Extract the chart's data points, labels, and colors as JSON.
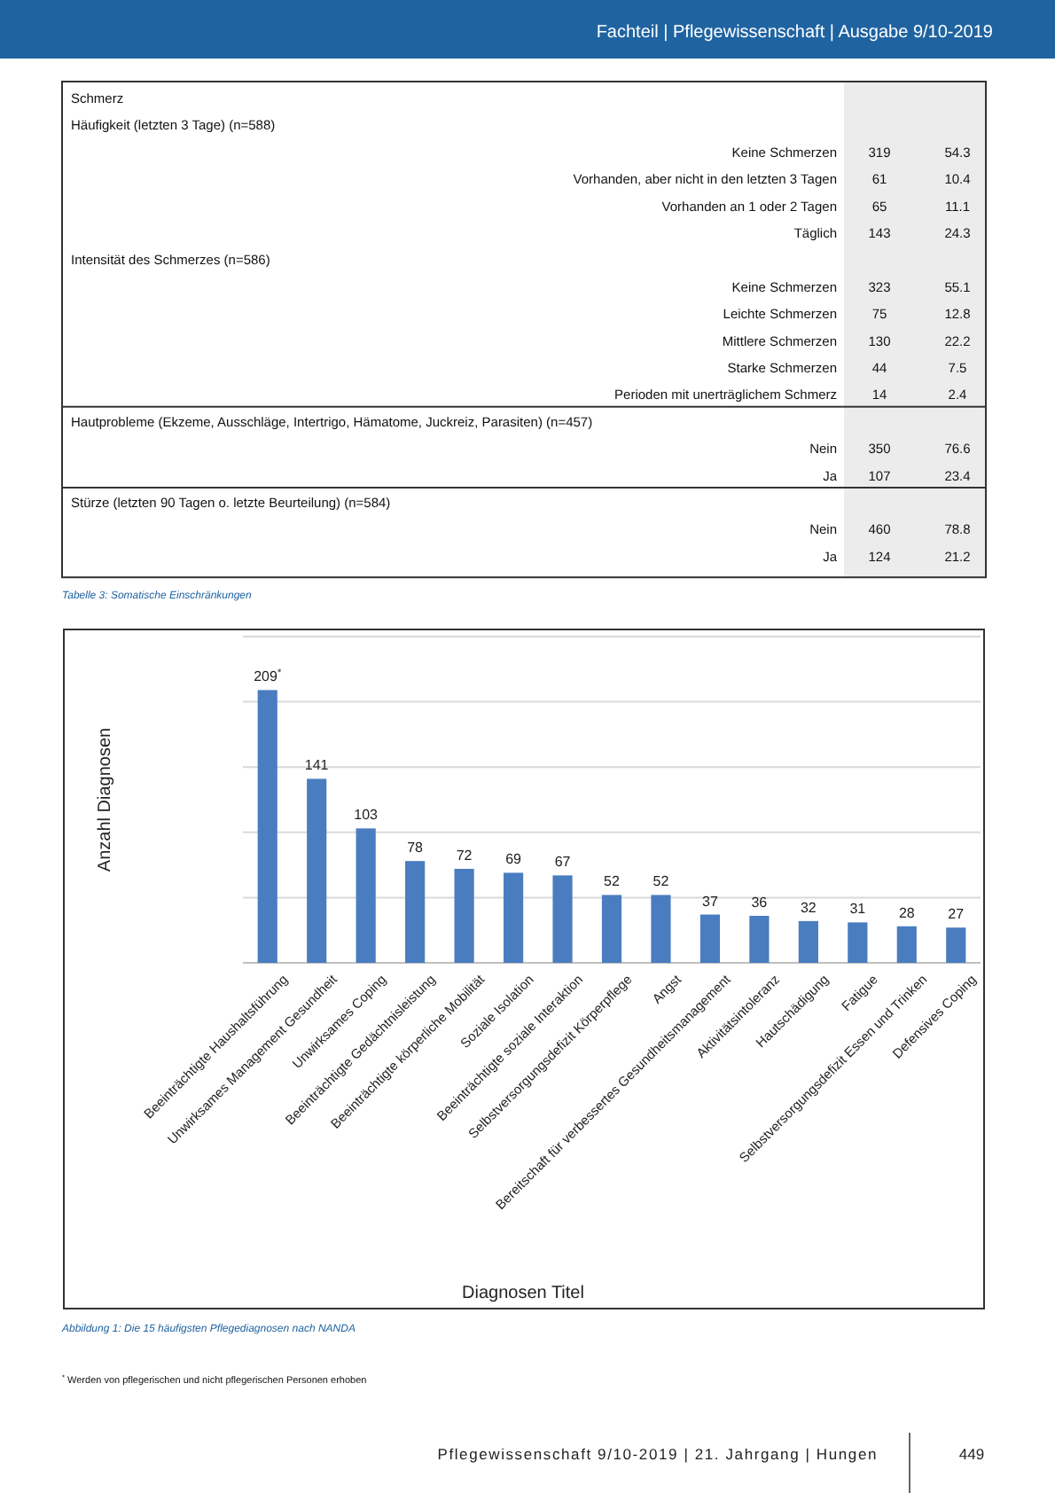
{
  "chart_data": [
    {
      "type": "other",
      "categories": [
        "Schmerz",
        "Häufigkeit (letzten 3 Tage) (n=588)",
        "Keine Schmerzen",
        "Vorhanden, aber nicht in den letzten 3 Tagen",
        "Vorhanden an 1 oder 2 Tagen",
        "Täglich",
        "Intensität des Schmerzes (n=586)",
        "Keine Schmerzen",
        "Leichte Schmerzen",
        "Mittlere Schmerzen",
        "Starke Schmerzen",
        "Perioden mit unerträglichem Schmerz",
        "Hautprobleme (Ekzeme, Ausschläge, Intertrigo, Hämatome, Juckreiz, Parasiten) (n=457)",
        "Nein",
        "Ja",
        "Stürze (letzten 90 Tagen o. letzte Beurteilung) (n=584)",
        "Nein",
        "Ja"
      ],
      "series": [
        {
          "values": [
            null,
            null,
            319,
            61,
            65,
            143,
            null,
            323,
            75,
            130,
            44,
            14,
            null,
            350,
            107,
            null,
            460,
            124
          ]
        },
        {
          "values": [
            null,
            null,
            54.3,
            10.4,
            11.1,
            24.3,
            null,
            55.1,
            12.8,
            22.2,
            7.5,
            2.4,
            null,
            76.6,
            23.4,
            null,
            78.8,
            21.2
          ]
        }
      ],
      "data_labels": true,
      "annotations": [
        "Fachteil | Pflegewissenschaft | Ausgabe 9/10-2019",
        "Tabelle 3: Somatische Einschränkungen"
      ]
    },
    {
      "type": "bar",
      "categories": [
        "Beeinträchtigte Haushaltsführung",
        "Unwirksames Management Gesundheit",
        "Unwirksames Coping",
        "Beeinträchtigte Gedächtnisleistung",
        "Beeinträchtigte körperliche Mobilität",
        "Soziale Isolation",
        "Beeinträchtigte soziale Interaktion",
        "Selbstversorgungsdefizit Körperpflege",
        "Angst",
        "Bereitschaft für verbessertes Gesundheitsmanagement",
        "Aktivitätsintoleranz",
        "Hautschädigung",
        "Fatigue",
        "Selbstversorgungsdefizit Essen und Trinken",
        "Defensives Coping"
      ],
      "values": [
        209,
        141,
        103,
        78,
        72,
        69,
        67,
        52,
        52,
        37,
        36,
        32,
        31,
        28,
        27
      ],
      "value_labels": [
        "209$^{*}$",
        "141",
        "103",
        "78",
        "72",
        "69",
        "67",
        "52",
        "52",
        "37",
        "36",
        "32",
        "31",
        "28",
        "27"
      ],
      "color": "#4a7dc0",
      "xlabel": "Diagnosen Titel",
      "ylabel": "Anzahl Diagnosen",
      "ylim": [
        0,
        250
      ],
      "yticks": [
        {
          "value": 0,
          "label": null
        },
        {
          "value": 50,
          "label": null
        },
        {
          "value": 100,
          "label": null
        },
        {
          "value": 150,
          "label": null
        },
        {
          "value": 200,
          "label": null
        },
        {
          "value": 250,
          "label": null
        }
      ],
      "tick_labels": "x",
      "grid": "y",
      "annotations": [
        "Abbildung 1: Die 15 häufigsten Pflegediagnosen nach NANDA",
        "$^{*}$ Werden von pflegerischen und nicht pflegerischen Personen erhoben",
        "Pflegewissenschaft 9/10-2019 | 21. Jahrgang | Hungen",
        "449"
      ]
    }
  ]
}
